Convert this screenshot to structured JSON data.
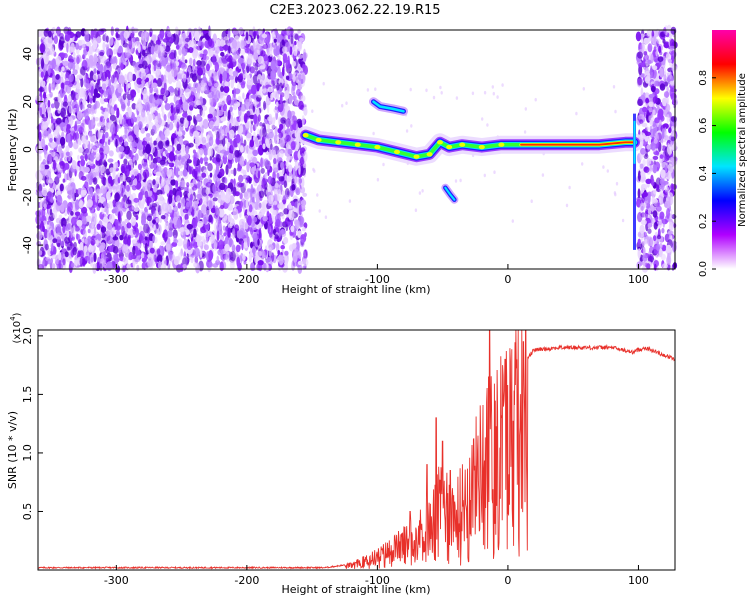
{
  "title": "C2E3.2023.062.22.19.R15",
  "chart_data": [
    {
      "type": "heatmap",
      "xlabel": "Height of straight line (km)",
      "ylabel": "Frequency (Hz)",
      "xlim": [
        -360,
        128
      ],
      "ylim": [
        -50,
        50
      ],
      "x_ticks": [
        -300,
        -200,
        -100,
        0,
        100
      ],
      "y_ticks": [
        40,
        20,
        0,
        -20,
        -40
      ],
      "colorbar": {
        "label": "Normalized spectral amplitude",
        "range": [
          0,
          1
        ],
        "ticks": [
          0.0,
          0.2,
          0.4,
          0.6,
          0.8
        ],
        "colors": [
          "#ffffff",
          "#b000ff",
          "#0000ff",
          "#00e5ff",
          "#00ff00",
          "#ffff00",
          "#ff0000",
          "#ff00aa"
        ]
      },
      "noise_regions": [
        [
          -360,
          -155
        ],
        [
          100,
          128
        ]
      ],
      "signal_track": [
        {
          "x": -155,
          "y": 6
        },
        {
          "x": -145,
          "y": 4
        },
        {
          "x": -130,
          "y": 3
        },
        {
          "x": -115,
          "y": 2
        },
        {
          "x": -100,
          "y": 1
        },
        {
          "x": -85,
          "y": -1
        },
        {
          "x": -70,
          "y": -3
        },
        {
          "x": -60,
          "y": -2
        },
        {
          "x": -52,
          "y": 3
        },
        {
          "x": -45,
          "y": 1
        },
        {
          "x": -35,
          "y": 2
        },
        {
          "x": -20,
          "y": 1
        },
        {
          "x": -5,
          "y": 2
        },
        {
          "x": 10,
          "y": 2
        },
        {
          "x": 30,
          "y": 2
        },
        {
          "x": 50,
          "y": 2
        },
        {
          "x": 70,
          "y": 2
        },
        {
          "x": 90,
          "y": 3
        },
        {
          "x": 97,
          "y": 3
        }
      ],
      "branch_track": [
        {
          "x": -103,
          "y": 20
        },
        {
          "x": -98,
          "y": 18
        },
        {
          "x": -88,
          "y": 17
        },
        {
          "x": -80,
          "y": 16
        }
      ],
      "lower_branch": [
        {
          "x": -48,
          "y": -16
        },
        {
          "x": -44,
          "y": -19
        },
        {
          "x": -41,
          "y": -21
        }
      ]
    },
    {
      "type": "line",
      "xlabel": "Height of straight line (km)",
      "ylabel": "SNR (10 * v/v)",
      "y_multiplier": "(x10",
      "y_multiplier_exp": "4",
      "xlim": [
        -360,
        128
      ],
      "ylim": [
        0,
        2.05
      ],
      "x_ticks": [
        -300,
        -200,
        -100,
        0,
        100
      ],
      "y_ticks": [
        0.5,
        1.0,
        1.5,
        2.0
      ],
      "y_tick_labels": [
        "0.5",
        "1.0",
        "1.5",
        "2.0"
      ],
      "color": "#e8302a",
      "envelope": [
        {
          "x": -360,
          "y": 0.02
        },
        {
          "x": -140,
          "y": 0.02
        },
        {
          "x": -120,
          "y": 0.05
        },
        {
          "x": -100,
          "y": 0.15
        },
        {
          "x": -80,
          "y": 0.3
        },
        {
          "x": -60,
          "y": 0.5
        },
        {
          "x": -50,
          "y": 0.8
        },
        {
          "x": -40,
          "y": 0.6
        },
        {
          "x": -30,
          "y": 0.9
        },
        {
          "x": -20,
          "y": 1.2
        },
        {
          "x": -10,
          "y": 1.5
        },
        {
          "x": 0,
          "y": 1.6
        },
        {
          "x": 10,
          "y": 1.75
        },
        {
          "x": 20,
          "y": 1.88
        },
        {
          "x": 40,
          "y": 1.9
        },
        {
          "x": 80,
          "y": 1.9
        },
        {
          "x": 95,
          "y": 1.86
        },
        {
          "x": 105,
          "y": 1.9
        },
        {
          "x": 128,
          "y": 1.8
        }
      ],
      "spikes": [
        {
          "x": -75,
          "y": 0.5
        },
        {
          "x": -62,
          "y": 0.9
        },
        {
          "x": -55,
          "y": 1.3
        },
        {
          "x": -50,
          "y": 1.1
        },
        {
          "x": -44,
          "y": 0.85
        },
        {
          "x": -14,
          "y": 2.05
        },
        {
          "x": -2,
          "y": 1.8
        },
        {
          "x": 12,
          "y": 1.95
        }
      ]
    }
  ]
}
